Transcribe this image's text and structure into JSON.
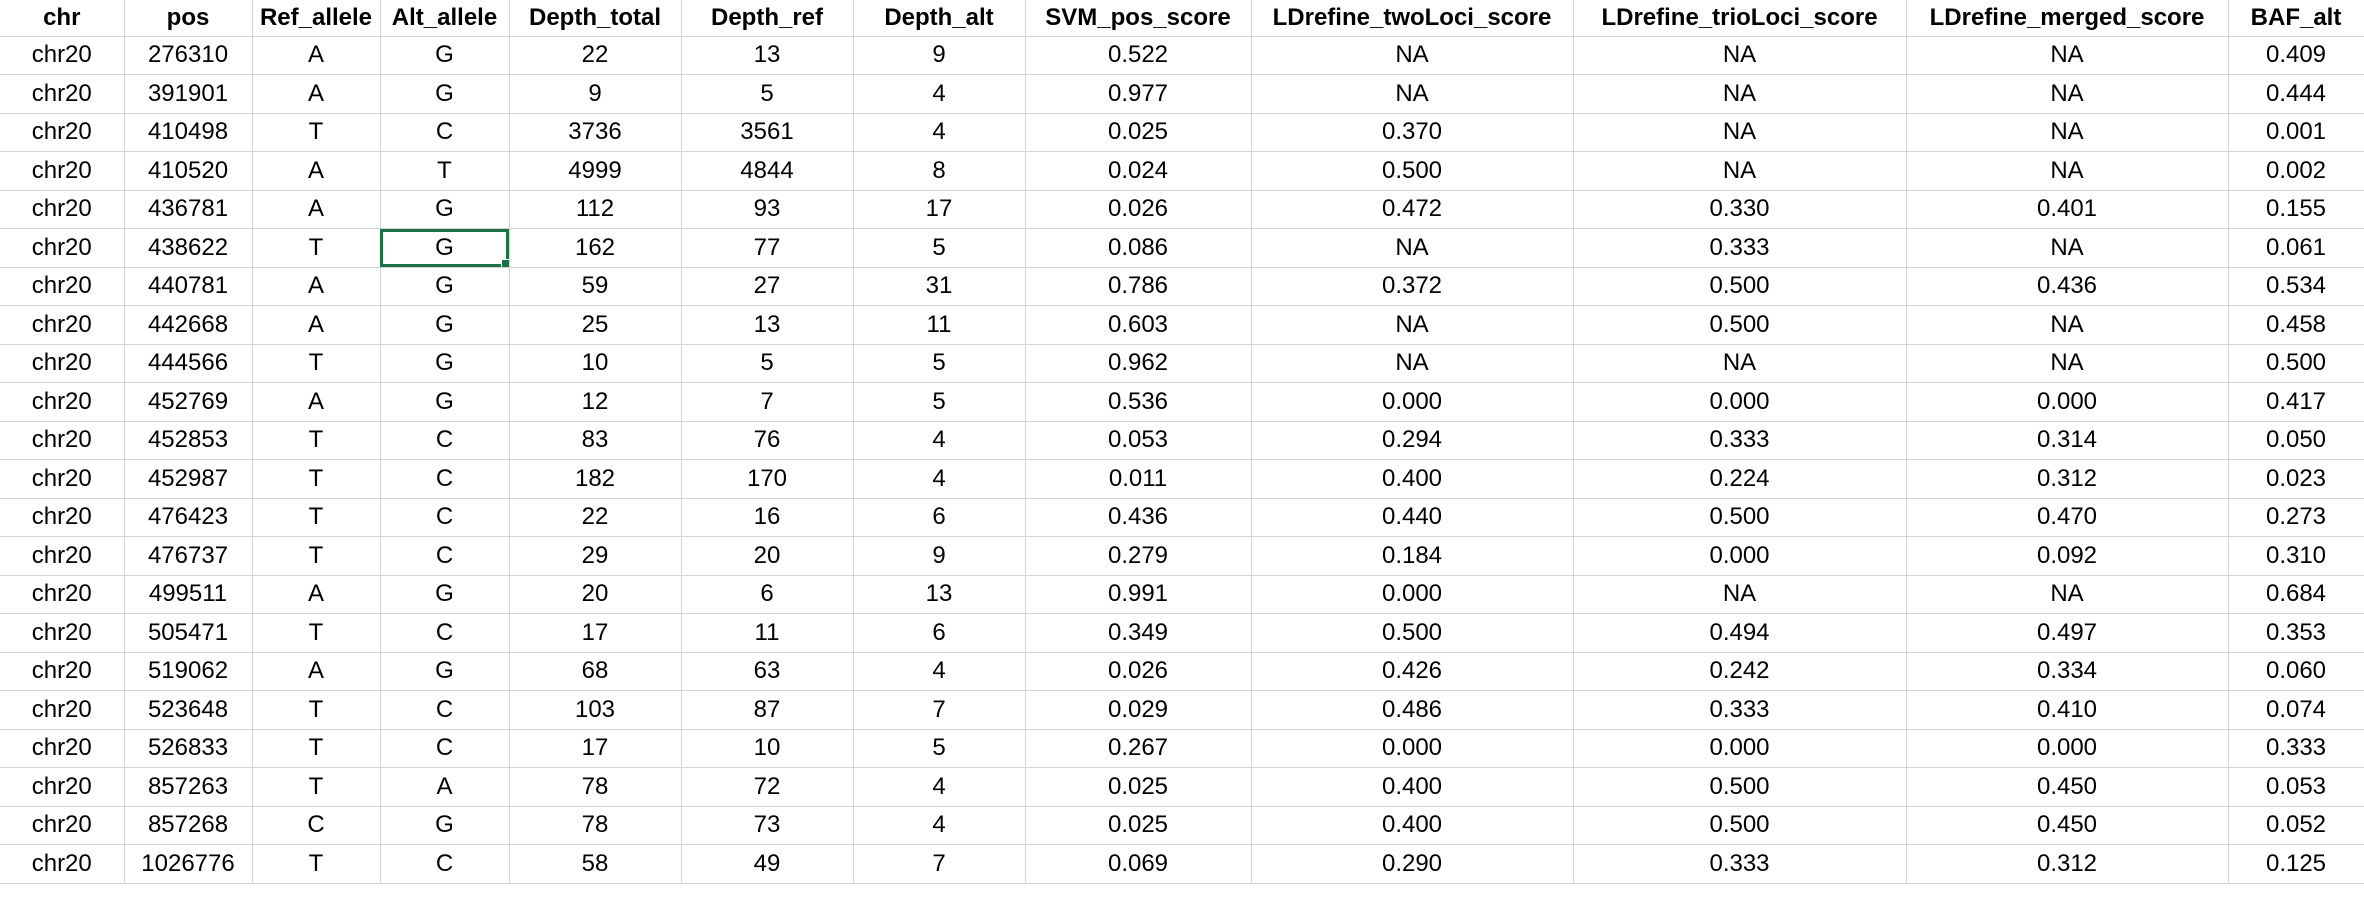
{
  "columns": [
    "chr",
    "pos",
    "Ref_allele",
    "Alt_allele",
    "Depth_total",
    "Depth_ref",
    "Depth_alt",
    "SVM_pos_score",
    "LDrefine_twoLoci_score",
    "LDrefine_trioLoci_score",
    "LDrefine_merged_score",
    "BAF_alt"
  ],
  "rows": [
    [
      "chr20",
      "276310",
      "A",
      "G",
      "22",
      "13",
      "9",
      "0.522",
      "NA",
      "NA",
      "NA",
      "0.409"
    ],
    [
      "chr20",
      "391901",
      "A",
      "G",
      "9",
      "5",
      "4",
      "0.977",
      "NA",
      "NA",
      "NA",
      "0.444"
    ],
    [
      "chr20",
      "410498",
      "T",
      "C",
      "3736",
      "3561",
      "4",
      "0.025",
      "0.370",
      "NA",
      "NA",
      "0.001"
    ],
    [
      "chr20",
      "410520",
      "A",
      "T",
      "4999",
      "4844",
      "8",
      "0.024",
      "0.500",
      "NA",
      "NA",
      "0.002"
    ],
    [
      "chr20",
      "436781",
      "A",
      "G",
      "112",
      "93",
      "17",
      "0.026",
      "0.472",
      "0.330",
      "0.401",
      "0.155"
    ],
    [
      "chr20",
      "438622",
      "T",
      "G",
      "162",
      "77",
      "5",
      "0.086",
      "NA",
      "0.333",
      "NA",
      "0.061"
    ],
    [
      "chr20",
      "440781",
      "A",
      "G",
      "59",
      "27",
      "31",
      "0.786",
      "0.372",
      "0.500",
      "0.436",
      "0.534"
    ],
    [
      "chr20",
      "442668",
      "A",
      "G",
      "25",
      "13",
      "11",
      "0.603",
      "NA",
      "0.500",
      "NA",
      "0.458"
    ],
    [
      "chr20",
      "444566",
      "T",
      "G",
      "10",
      "5",
      "5",
      "0.962",
      "NA",
      "NA",
      "NA",
      "0.500"
    ],
    [
      "chr20",
      "452769",
      "A",
      "G",
      "12",
      "7",
      "5",
      "0.536",
      "0.000",
      "0.000",
      "0.000",
      "0.417"
    ],
    [
      "chr20",
      "452853",
      "T",
      "C",
      "83",
      "76",
      "4",
      "0.053",
      "0.294",
      "0.333",
      "0.314",
      "0.050"
    ],
    [
      "chr20",
      "452987",
      "T",
      "C",
      "182",
      "170",
      "4",
      "0.011",
      "0.400",
      "0.224",
      "0.312",
      "0.023"
    ],
    [
      "chr20",
      "476423",
      "T",
      "C",
      "22",
      "16",
      "6",
      "0.436",
      "0.440",
      "0.500",
      "0.470",
      "0.273"
    ],
    [
      "chr20",
      "476737",
      "T",
      "C",
      "29",
      "20",
      "9",
      "0.279",
      "0.184",
      "0.000",
      "0.092",
      "0.310"
    ],
    [
      "chr20",
      "499511",
      "A",
      "G",
      "20",
      "6",
      "13",
      "0.991",
      "0.000",
      "NA",
      "NA",
      "0.684"
    ],
    [
      "chr20",
      "505471",
      "T",
      "C",
      "17",
      "11",
      "6",
      "0.349",
      "0.500",
      "0.494",
      "0.497",
      "0.353"
    ],
    [
      "chr20",
      "519062",
      "A",
      "G",
      "68",
      "63",
      "4",
      "0.026",
      "0.426",
      "0.242",
      "0.334",
      "0.060"
    ],
    [
      "chr20",
      "523648",
      "T",
      "C",
      "103",
      "87",
      "7",
      "0.029",
      "0.486",
      "0.333",
      "0.410",
      "0.074"
    ],
    [
      "chr20",
      "526833",
      "T",
      "C",
      "17",
      "10",
      "5",
      "0.267",
      "0.000",
      "0.000",
      "0.000",
      "0.333"
    ],
    [
      "chr20",
      "857263",
      "T",
      "A",
      "78",
      "72",
      "4",
      "0.025",
      "0.400",
      "0.500",
      "0.450",
      "0.053"
    ],
    [
      "chr20",
      "857268",
      "C",
      "G",
      "78",
      "73",
      "4",
      "0.025",
      "0.400",
      "0.500",
      "0.450",
      "0.052"
    ],
    [
      "chr20",
      "1026776",
      "T",
      "C",
      "58",
      "49",
      "7",
      "0.069",
      "0.290",
      "0.333",
      "0.312",
      "0.125"
    ]
  ],
  "selection": {
    "row": 5,
    "col": 3
  },
  "colors": {
    "gridline": "#d4d4d4",
    "selection": "#1e7145"
  }
}
